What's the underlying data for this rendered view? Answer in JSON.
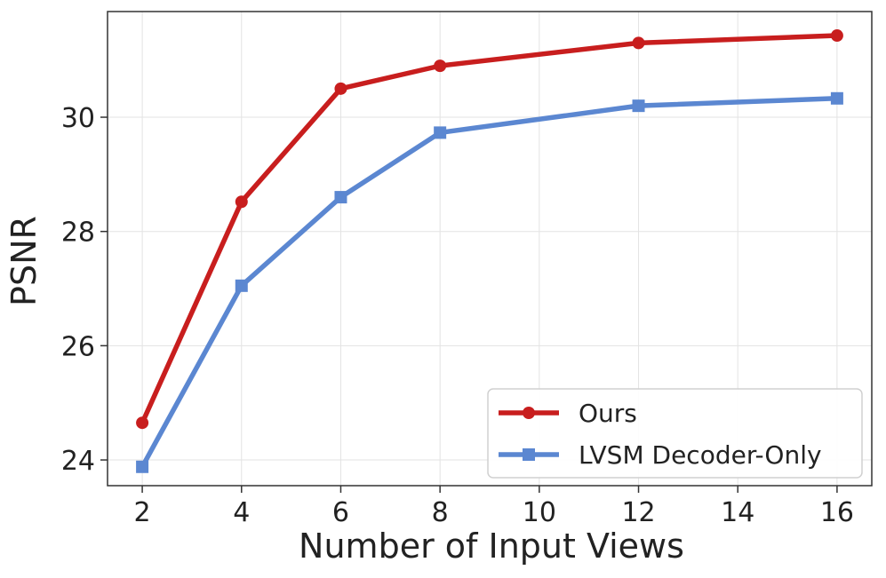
{
  "chart_data": {
    "type": "line",
    "xlabel": "Number of Input Views",
    "ylabel": "PSNR",
    "x": [
      2,
      4,
      6,
      8,
      12,
      16
    ],
    "xticks": [
      2,
      4,
      6,
      8,
      10,
      12,
      14,
      16
    ],
    "yticks": [
      24,
      26,
      28,
      30
    ],
    "xlim": [
      1.3,
      16.7
    ],
    "ylim": [
      23.55,
      31.85
    ],
    "grid": true,
    "legend_position": "lower-right",
    "series": [
      {
        "name": "Ours",
        "values": [
          24.65,
          28.52,
          30.5,
          30.9,
          31.3,
          31.43
        ],
        "color": "#c81e1e",
        "marker": "circle"
      },
      {
        "name": "LVSM Decoder-Only",
        "values": [
          23.88,
          27.05,
          28.6,
          29.73,
          30.2,
          30.33
        ],
        "color": "#5b87d1",
        "marker": "square"
      }
    ]
  }
}
